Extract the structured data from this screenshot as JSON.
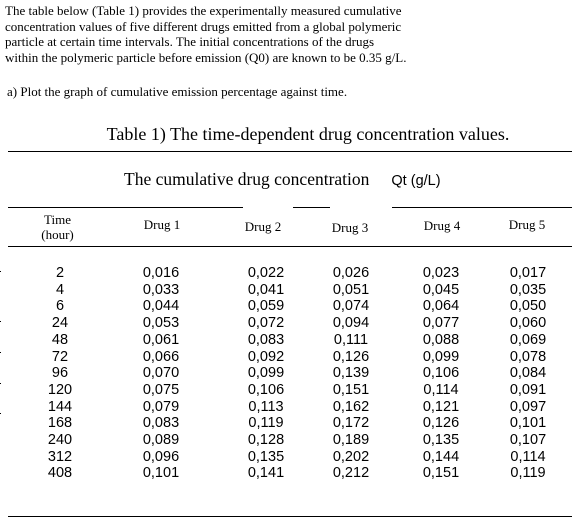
{
  "intro": {
    "lines": [
      "The table below (Table 1) provides the experimentally measured cumulative",
      "concentration values of five different drugs emitted from a global polymeric",
      "particle at certain time intervals. The initial concentrations of the drugs",
      "within the polymeric particle before emission (Q0) are known to be 0.35 g/L."
    ],
    "question": "a) Plot the graph of cumulative emission percentage against time."
  },
  "table": {
    "caption": "Table 1) The time-dependent drug concentration values.",
    "group_header": "The cumulative drug concentration",
    "group_unit": "Qt (g/L)",
    "time_header_line1": "Time",
    "time_header_line2": "(hour)",
    "drug_headers": [
      "Drug 1",
      "Drug 2",
      "Drug 3",
      "Drug 4",
      "Drug 5"
    ],
    "rows": [
      {
        "time": "2",
        "d": [
          "0,016",
          "0,022",
          "0,026",
          "0,023",
          "0,017"
        ]
      },
      {
        "time": "4",
        "d": [
          "0,033",
          "0,041",
          "0,051",
          "0,045",
          "0,035"
        ]
      },
      {
        "time": "6",
        "d": [
          "0,044",
          "0,059",
          "0,074",
          "0,064",
          "0,050"
        ]
      },
      {
        "time": "24",
        "d": [
          "0,053",
          "0,072",
          "0,094",
          "0,077",
          "0,060"
        ]
      },
      {
        "time": "48",
        "d": [
          "0,061",
          "0,083",
          "0,111",
          "0,088",
          "0,069"
        ]
      },
      {
        "time": "72",
        "d": [
          "0,066",
          "0,092",
          "0,126",
          "0,099",
          "0,078"
        ]
      },
      {
        "time": "96",
        "d": [
          "0,070",
          "0,099",
          "0,139",
          "0,106",
          "0,084"
        ]
      },
      {
        "time": "120",
        "d": [
          "0,075",
          "0,106",
          "0,151",
          "0,114",
          "0,091"
        ]
      },
      {
        "time": "144",
        "d": [
          "0,079",
          "0,113",
          "0,162",
          "0,121",
          "0,097"
        ]
      },
      {
        "time": "168",
        "d": [
          "0,083",
          "0,119",
          "0,172",
          "0,126",
          "0,101"
        ]
      },
      {
        "time": "240",
        "d": [
          "0,089",
          "0,128",
          "0,189",
          "0,135",
          "0,107"
        ]
      },
      {
        "time": "312",
        "d": [
          "0,096",
          "0,135",
          "0,202",
          "0,144",
          "0,114"
        ]
      },
      {
        "time": "408",
        "d": [
          "0,101",
          "0,141",
          "0,212",
          "0,151",
          "0,119"
        ]
      }
    ]
  }
}
